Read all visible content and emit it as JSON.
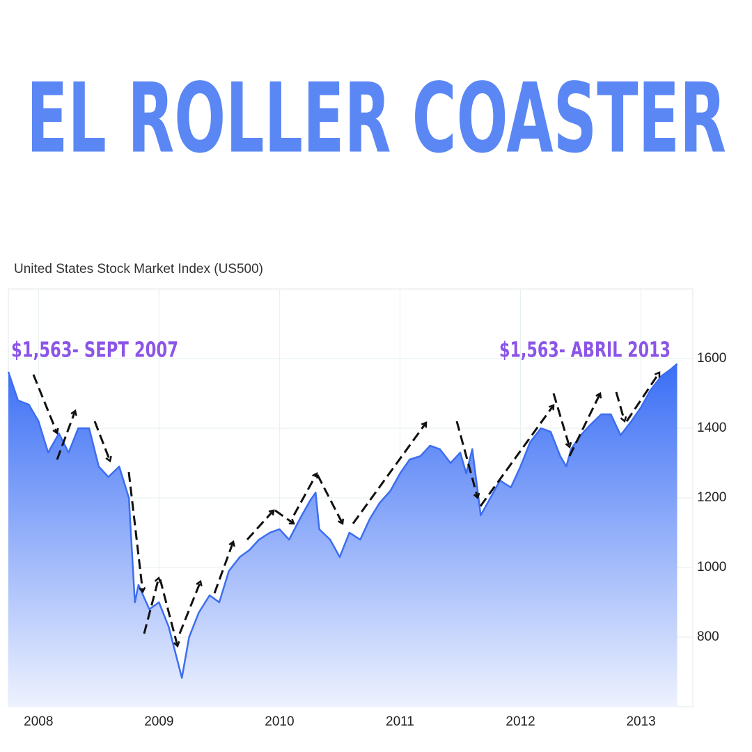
{
  "title": "EL ROLLER COASTER",
  "chart_data": {
    "type": "area",
    "title": "United States Stock Market Index (US500)",
    "annotations": [
      "$1,563- SEPT 2007",
      "$1,563- ABRIL 2013"
    ],
    "color": "#3d6ef0",
    "x": [
      2007.75,
      2007.83,
      2007.92,
      2008.0,
      2008.08,
      2008.17,
      2008.25,
      2008.33,
      2008.42,
      2008.5,
      2008.58,
      2008.67,
      2008.75,
      2008.8,
      2008.83,
      2008.92,
      2009.0,
      2009.08,
      2009.19,
      2009.25,
      2009.33,
      2009.42,
      2009.5,
      2009.58,
      2009.67,
      2009.75,
      2009.83,
      2009.92,
      2010.0,
      2010.08,
      2010.17,
      2010.25,
      2010.3,
      2010.33,
      2010.42,
      2010.5,
      2010.58,
      2010.67,
      2010.75,
      2010.83,
      2010.92,
      2011.0,
      2011.08,
      2011.17,
      2011.25,
      2011.33,
      2011.42,
      2011.5,
      2011.55,
      2011.6,
      2011.67,
      2011.75,
      2011.83,
      2011.92,
      2012.0,
      2012.08,
      2012.17,
      2012.25,
      2012.33,
      2012.38,
      2012.42,
      2012.5,
      2012.58,
      2012.67,
      2012.75,
      2012.83,
      2012.92,
      2013.0,
      2013.08,
      2013.17,
      2013.25,
      2013.3
    ],
    "values": [
      1562,
      1480,
      1468,
      1420,
      1330,
      1385,
      1330,
      1400,
      1400,
      1290,
      1260,
      1290,
      1200,
      900,
      950,
      880,
      900,
      830,
      683,
      800,
      870,
      920,
      900,
      990,
      1030,
      1050,
      1080,
      1100,
      1110,
      1080,
      1140,
      1190,
      1215,
      1110,
      1080,
      1030,
      1100,
      1080,
      1140,
      1185,
      1220,
      1270,
      1310,
      1320,
      1350,
      1340,
      1300,
      1330,
      1270,
      1340,
      1150,
      1200,
      1250,
      1230,
      1290,
      1360,
      1400,
      1390,
      1320,
      1290,
      1340,
      1380,
      1410,
      1440,
      1440,
      1380,
      1420,
      1460,
      1510,
      1550,
      1570,
      1585
    ],
    "xlim": [
      2007.75,
      2013.43
    ],
    "xticks": [
      2008,
      2009,
      2010,
      2011,
      2012,
      2013
    ],
    "ylim": [
      600,
      1800
    ],
    "yticks": [
      800,
      1000,
      1200,
      1400,
      1600
    ],
    "grid": true
  }
}
